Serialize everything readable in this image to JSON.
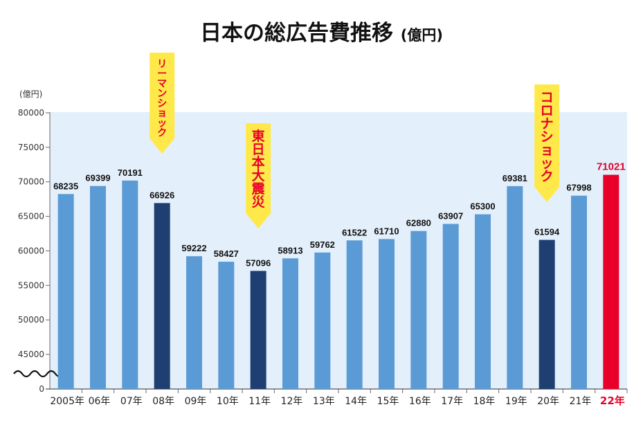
{
  "chart_data": {
    "type": "bar",
    "title": "日本の総広告費推移",
    "title_unit": "(億円)",
    "ylabel": "(億円)",
    "ylim": [
      40000,
      80000
    ],
    "yticks": [
      80000,
      75000,
      70000,
      65000,
      60000,
      55000,
      50000,
      45000
    ],
    "y_zero_label": "0",
    "axis_break": true,
    "grid": false,
    "categories": [
      "2005年",
      "06年",
      "07年",
      "08年",
      "09年",
      "10年",
      "11年",
      "12年",
      "13年",
      "14年",
      "15年",
      "16年",
      "17年",
      "18年",
      "19年",
      "20年",
      "21年",
      "22年"
    ],
    "values": [
      68235,
      69399,
      70191,
      66926,
      59222,
      58427,
      57096,
      58913,
      59762,
      61522,
      61710,
      62880,
      63907,
      65300,
      69381,
      61594,
      67998,
      71021
    ],
    "value_labels": [
      "68235",
      "69399",
      "70191",
      "66926",
      "59222",
      "58427",
      "57096",
      "58913",
      "59762",
      "61522",
      "61710",
      "62880",
      "63907",
      "65300",
      "69381",
      "61594",
      "67998",
      "71021"
    ],
    "bar_kind": [
      "normal",
      "normal",
      "normal",
      "event",
      "normal",
      "normal",
      "event",
      "normal",
      "normal",
      "normal",
      "normal",
      "normal",
      "normal",
      "normal",
      "normal",
      "event",
      "normal",
      "latest"
    ],
    "annotations": [
      {
        "text": "リーマンショック",
        "category_index": 3
      },
      {
        "text": "東日本大震災",
        "category_index": 6
      },
      {
        "text": "コロナショック",
        "category_index": 15
      }
    ],
    "colors": {
      "normal": "#5b9bd5",
      "event": "#1f3f73",
      "latest": "#e8002a",
      "plot_bg": "#e3effa",
      "callout": "#ffe94a",
      "callout_text": "#e8002a"
    }
  }
}
